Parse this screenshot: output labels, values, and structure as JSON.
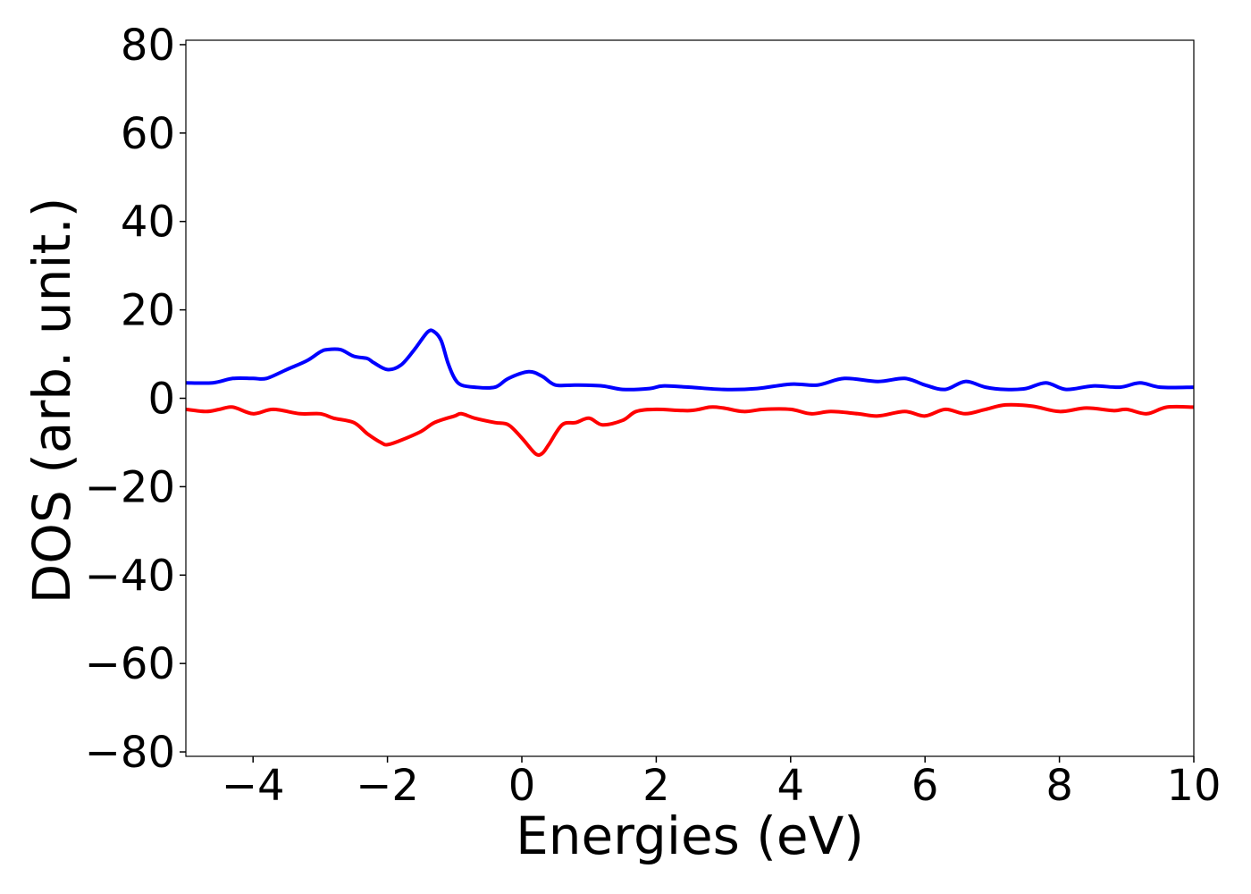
{
  "chart_data": {
    "type": "line",
    "title": "",
    "xlabel": "Energies (eV)",
    "ylabel": "DOS (arb. unit.)",
    "xlim": [
      -5,
      10
    ],
    "ylim": [
      -81,
      81
    ],
    "xticks": [
      -4,
      -2,
      0,
      2,
      4,
      6,
      8,
      10
    ],
    "xtick_labels": [
      "−4",
      "−2",
      "0",
      "2",
      "4",
      "6",
      "8",
      "10"
    ],
    "yticks": [
      80,
      60,
      40,
      20,
      0,
      -20,
      -40,
      -60,
      -80
    ],
    "ytick_labels": [
      "80",
      "60",
      "40",
      "20",
      "0",
      "−20",
      "−40",
      "−60",
      "−80"
    ],
    "grid": false,
    "legend": null,
    "series": [
      {
        "color": "#0000ff",
        "x": [
          -5.0,
          -4.6,
          -4.3,
          -4.0,
          -3.8,
          -3.5,
          -3.2,
          -3.0,
          -2.9,
          -2.7,
          -2.5,
          -2.3,
          -2.2,
          -2.0,
          -1.8,
          -1.6,
          -1.4,
          -1.3,
          -1.2,
          -1.1,
          -1.0,
          -0.9,
          -0.7,
          -0.4,
          -0.2,
          0.1,
          0.3,
          0.5,
          0.8,
          1.2,
          1.5,
          1.9,
          2.1,
          2.5,
          3.0,
          3.5,
          4.0,
          4.4,
          4.8,
          5.3,
          5.7,
          6.0,
          6.3,
          6.6,
          6.9,
          7.2,
          7.5,
          7.8,
          8.1,
          8.5,
          8.9,
          9.2,
          9.5,
          10.0
        ],
        "values": [
          3.5,
          3.5,
          4.5,
          4.5,
          4.5,
          6.5,
          8.5,
          10.5,
          11.0,
          11.0,
          9.5,
          9.0,
          8.0,
          6.5,
          7.5,
          11.0,
          15.0,
          15.0,
          13.0,
          8.0,
          4.5,
          3.0,
          2.5,
          2.5,
          4.5,
          6.0,
          5.0,
          3.0,
          3.0,
          2.8,
          2.0,
          2.2,
          2.8,
          2.5,
          2.0,
          2.2,
          3.2,
          3.0,
          4.5,
          3.8,
          4.5,
          3.0,
          2.0,
          3.8,
          2.5,
          2.0,
          2.2,
          3.5,
          2.0,
          2.8,
          2.5,
          3.5,
          2.5,
          2.5
        ]
      },
      {
        "color": "#ff0000",
        "x": [
          -5.0,
          -4.7,
          -4.5,
          -4.3,
          -4.0,
          -3.7,
          -3.3,
          -3.0,
          -2.8,
          -2.5,
          -2.3,
          -2.1,
          -2.0,
          -1.8,
          -1.5,
          -1.3,
          -1.0,
          -0.9,
          -0.7,
          -0.4,
          -0.2,
          0.0,
          0.2,
          0.3,
          0.4,
          0.6,
          0.8,
          1.0,
          1.2,
          1.5,
          1.7,
          2.0,
          2.5,
          2.8,
          3.0,
          3.3,
          3.6,
          4.0,
          4.3,
          4.6,
          5.0,
          5.3,
          5.7,
          6.0,
          6.3,
          6.6,
          6.9,
          7.2,
          7.6,
          8.0,
          8.4,
          8.8,
          9.0,
          9.3,
          9.6,
          10.0
        ],
        "values": [
          -2.5,
          -3.0,
          -2.5,
          -2.0,
          -3.5,
          -2.5,
          -3.5,
          -3.5,
          -4.5,
          -5.5,
          -8.0,
          -10.0,
          -10.5,
          -9.5,
          -7.5,
          -5.5,
          -4.0,
          -3.5,
          -4.5,
          -5.5,
          -6.0,
          -9.0,
          -12.5,
          -12.5,
          -10.5,
          -6.0,
          -5.5,
          -4.5,
          -6.0,
          -5.0,
          -3.0,
          -2.5,
          -2.8,
          -2.0,
          -2.2,
          -3.0,
          -2.5,
          -2.5,
          -3.5,
          -3.0,
          -3.5,
          -4.0,
          -3.0,
          -4.0,
          -2.5,
          -3.5,
          -2.5,
          -1.5,
          -1.8,
          -3.0,
          -2.2,
          -2.8,
          -2.5,
          -3.5,
          -2.0,
          -2.0
        ]
      }
    ]
  }
}
